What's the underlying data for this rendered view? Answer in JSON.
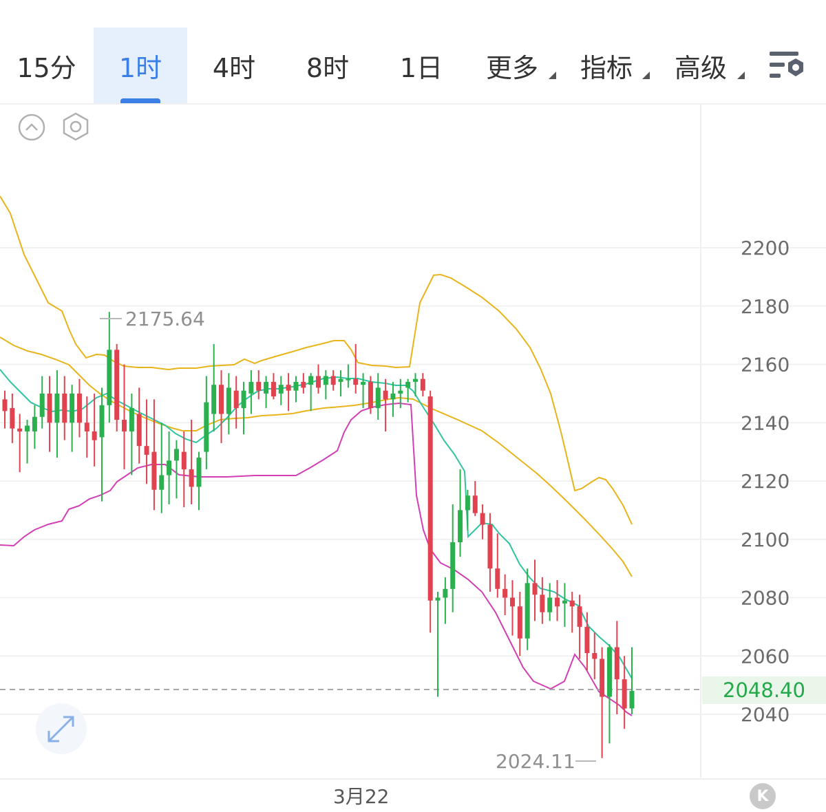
{
  "tabs": [
    {
      "label": "15分",
      "active": false,
      "dropdown": false
    },
    {
      "label": "1时",
      "active": true,
      "dropdown": false
    },
    {
      "label": "4时",
      "active": false,
      "dropdown": false
    },
    {
      "label": "8时",
      "active": false,
      "dropdown": false
    },
    {
      "label": "1日",
      "active": false,
      "dropdown": false
    },
    {
      "label": "更多",
      "active": false,
      "dropdown": true
    },
    {
      "label": "指标",
      "active": false,
      "dropdown": true
    },
    {
      "label": "高级",
      "active": false,
      "dropdown": true
    }
  ],
  "toolbar_icons": [
    "collapse-up-icon",
    "settings-hexagon-icon",
    "chart-settings-icon",
    "expand-icon"
  ],
  "colors": {
    "accent": "#3a7ee6",
    "up": "#2bb04f",
    "down": "#e0434f",
    "boll_outer": "#e8b41a",
    "ma_teal": "#2ec4a0",
    "boll_lower": "#d23fb4",
    "price_tag": "#24a84a"
  },
  "chart": {
    "y_ticks": [
      "2200",
      "2180",
      "2160",
      "2140",
      "2120",
      "2100",
      "2080",
      "2060",
      "2040"
    ],
    "x_label": "3月22",
    "high_label": "2175.64",
    "low_label": "2024.11",
    "current_price": "2048.40",
    "k_badge": "K"
  },
  "chart_data": {
    "type": "candlestick",
    "y_axis": {
      "min": 2024,
      "max": 2200,
      "ticks": [
        2200,
        2180,
        2160,
        2140,
        2120,
        2100,
        2080,
        2060,
        2040
      ]
    },
    "x_label": "3月22",
    "current_price": 2048.4,
    "annotations": [
      {
        "label": "2175.64",
        "type": "high"
      },
      {
        "label": "2024.11",
        "type": "low"
      }
    ],
    "candles": [
      [
        2148,
        2151,
        2138,
        2144
      ],
      [
        2145,
        2150,
        2133,
        2138
      ],
      [
        2138,
        2143,
        2123,
        2137
      ],
      [
        2137,
        2141,
        2126,
        2139
      ],
      [
        2137,
        2146,
        2131,
        2142
      ],
      [
        2142,
        2156,
        2138,
        2150
      ],
      [
        2150,
        2156,
        2130,
        2140
      ],
      [
        2140,
        2158,
        2128,
        2150
      ],
      [
        2150,
        2156,
        2134,
        2140
      ],
      [
        2140,
        2153,
        2130,
        2150
      ],
      [
        2150,
        2155,
        2135,
        2140
      ],
      [
        2140,
        2149,
        2128,
        2137
      ],
      [
        2137,
        2150,
        2125,
        2134
      ],
      [
        2135,
        2152,
        2113,
        2146
      ],
      [
        2146,
        2178,
        2140,
        2165
      ],
      [
        2165,
        2167,
        2137,
        2141
      ],
      [
        2141,
        2160,
        2124,
        2137
      ],
      [
        2137,
        2150,
        2122,
        2145
      ],
      [
        2143,
        2152,
        2126,
        2132
      ],
      [
        2132,
        2148,
        2119,
        2129
      ],
      [
        2130,
        2148,
        2110,
        2117
      ],
      [
        2117,
        2140,
        2109,
        2122
      ],
      [
        2122,
        2137,
        2112,
        2127
      ],
      [
        2127,
        2134,
        2114,
        2131
      ],
      [
        2130,
        2137,
        2111,
        2124
      ],
      [
        2124,
        2141,
        2112,
        2118
      ],
      [
        2118,
        2130,
        2110,
        2128
      ],
      [
        2130,
        2156,
        2124,
        2147
      ],
      [
        2143,
        2167,
        2137,
        2153
      ],
      [
        2153,
        2158,
        2133,
        2143
      ],
      [
        2143,
        2157,
        2136,
        2152
      ],
      [
        2151,
        2156,
        2138,
        2145
      ],
      [
        2145,
        2154,
        2136,
        2151
      ],
      [
        2150,
        2158,
        2143,
        2154
      ],
      [
        2154,
        2158,
        2148,
        2151
      ],
      [
        2150,
        2156,
        2145,
        2154
      ],
      [
        2154,
        2157,
        2148,
        2149
      ],
      [
        2150,
        2156,
        2146,
        2153
      ],
      [
        2153,
        2157,
        2144,
        2151
      ],
      [
        2151,
        2156,
        2147,
        2154
      ],
      [
        2154,
        2157,
        2150,
        2152
      ],
      [
        2153,
        2157,
        2144,
        2156
      ],
      [
        2156,
        2160,
        2150,
        2152
      ],
      [
        2153,
        2158,
        2148,
        2156
      ],
      [
        2156,
        2158,
        2151,
        2153
      ],
      [
        2154,
        2158,
        2149,
        2155
      ],
      [
        2155,
        2160,
        2152,
        2155
      ],
      [
        2155,
        2167,
        2150,
        2153
      ],
      [
        2153,
        2157,
        2145,
        2154
      ],
      [
        2154,
        2156,
        2143,
        2145
      ],
      [
        2145,
        2157,
        2141,
        2152
      ],
      [
        2151,
        2155,
        2137,
        2148
      ],
      [
        2148,
        2154,
        2142,
        2150
      ],
      [
        2150,
        2155,
        2145,
        2151
      ],
      [
        2152,
        2155,
        2147,
        2154
      ],
      [
        2154,
        2157,
        2149,
        2155
      ],
      [
        2155,
        2157,
        2149,
        2151
      ],
      [
        2149,
        2151,
        2068,
        2079
      ],
      [
        2079,
        2082,
        2046,
        2080
      ],
      [
        2080,
        2087,
        2071,
        2083
      ],
      [
        2083,
        2112,
        2075,
        2099
      ],
      [
        2099,
        2124,
        2094,
        2110
      ],
      [
        2110,
        2117,
        2103,
        2115
      ],
      [
        2115,
        2120,
        2108,
        2109
      ],
      [
        2109,
        2112,
        2100,
        2105
      ],
      [
        2105,
        2109,
        2082,
        2090
      ],
      [
        2090,
        2102,
        2080,
        2083
      ],
      [
        2083,
        2088,
        2074,
        2080
      ],
      [
        2080,
        2086,
        2067,
        2077
      ],
      [
        2077,
        2082,
        2060,
        2066
      ],
      [
        2066,
        2090,
        2062,
        2085
      ],
      [
        2085,
        2093,
        2072,
        2081
      ],
      [
        2081,
        2087,
        2071,
        2075
      ],
      [
        2075,
        2085,
        2072,
        2080
      ],
      [
        2080,
        2086,
        2072,
        2077
      ],
      [
        2078,
        2085,
        2070,
        2079
      ],
      [
        2079,
        2082,
        2068,
        2077
      ],
      [
        2077,
        2081,
        2059,
        2070
      ],
      [
        2070,
        2075,
        2055,
        2061
      ],
      [
        2061,
        2068,
        2052,
        2059
      ],
      [
        2059,
        2063,
        2025,
        2046
      ],
      [
        2046,
        2064,
        2030,
        2063
      ],
      [
        2063,
        2072,
        2040,
        2052
      ],
      [
        2052,
        2060,
        2035,
        2042
      ],
      [
        2042,
        2063,
        2040,
        2048
      ]
    ]
  }
}
